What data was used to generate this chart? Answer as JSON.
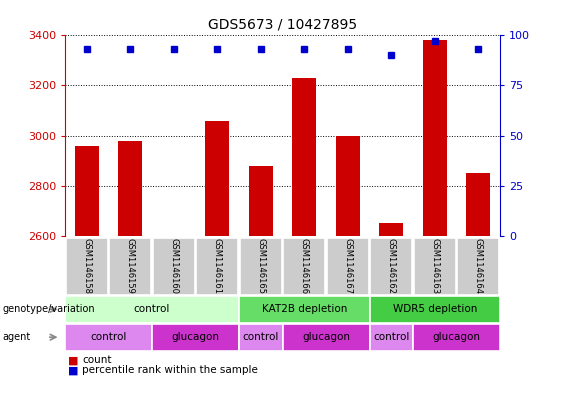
{
  "title": "GDS5673 / 10427895",
  "samples": [
    "GSM1146158",
    "GSM1146159",
    "GSM1146160",
    "GSM1146161",
    "GSM1146165",
    "GSM1146166",
    "GSM1146167",
    "GSM1146162",
    "GSM1146163",
    "GSM1146164"
  ],
  "counts": [
    2960,
    2980,
    2600,
    3060,
    2880,
    3230,
    3000,
    2650,
    3380,
    2850
  ],
  "percentiles": [
    93,
    93,
    93,
    93,
    93,
    93,
    93,
    90,
    97,
    93
  ],
  "ylim_left": [
    2600,
    3400
  ],
  "ylim_right": [
    0,
    100
  ],
  "yticks_left": [
    2600,
    2800,
    3000,
    3200,
    3400
  ],
  "yticks_right": [
    0,
    25,
    50,
    75,
    100
  ],
  "bar_color": "#cc0000",
  "dot_color": "#0000cc",
  "genotype_groups": [
    {
      "label": "control",
      "start": 0,
      "end": 4,
      "color": "#ccffcc"
    },
    {
      "label": "KAT2B depletion",
      "start": 4,
      "end": 7,
      "color": "#66dd66"
    },
    {
      "label": "WDR5 depletion",
      "start": 7,
      "end": 10,
      "color": "#44cc44"
    }
  ],
  "agent_groups": [
    {
      "label": "control",
      "start": 0,
      "end": 2,
      "color": "#dd88ee"
    },
    {
      "label": "glucagon",
      "start": 2,
      "end": 4,
      "color": "#cc33cc"
    },
    {
      "label": "control",
      "start": 4,
      "end": 5,
      "color": "#dd88ee"
    },
    {
      "label": "glucagon",
      "start": 5,
      "end": 7,
      "color": "#cc33cc"
    },
    {
      "label": "control",
      "start": 7,
      "end": 8,
      "color": "#dd88ee"
    },
    {
      "label": "glucagon",
      "start": 8,
      "end": 10,
      "color": "#cc33cc"
    }
  ],
  "legend_count_color": "#cc0000",
  "legend_dot_color": "#0000cc",
  "left_axis_color": "#cc0000",
  "right_axis_color": "#0000cc",
  "background_color": "#ffffff",
  "sample_bg_color": "#cccccc"
}
